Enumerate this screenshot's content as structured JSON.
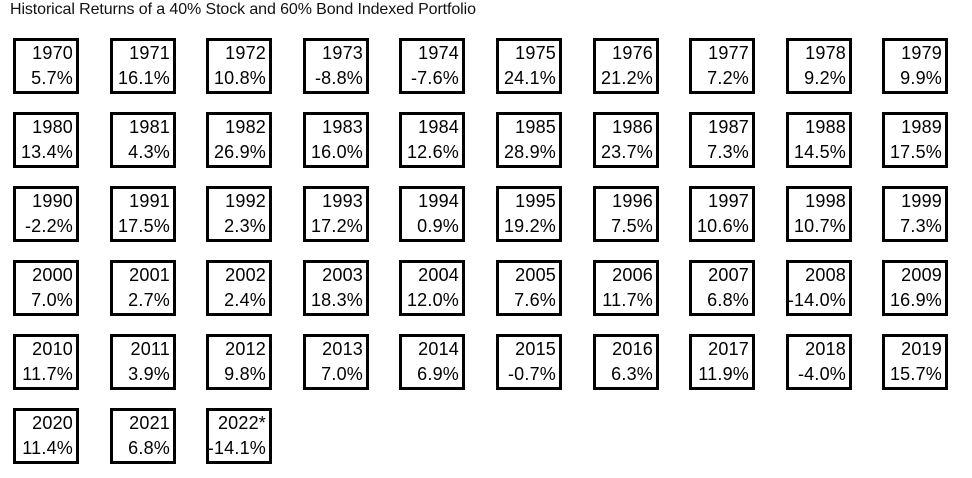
{
  "title": "Historical Returns of a 40% Stock and 60% Bond Indexed Portfolio",
  "chart_data": {
    "type": "table",
    "title": "Historical Returns of a 40% Stock and 60% Bond Indexed Portfolio",
    "columns_per_row": 10,
    "cells": [
      {
        "year": "1970",
        "return": "5.7%",
        "value": 5.7
      },
      {
        "year": "1971",
        "return": "16.1%",
        "value": 16.1
      },
      {
        "year": "1972",
        "return": "10.8%",
        "value": 10.8
      },
      {
        "year": "1973",
        "return": "-8.8%",
        "value": -8.8
      },
      {
        "year": "1974",
        "return": "-7.6%",
        "value": -7.6
      },
      {
        "year": "1975",
        "return": "24.1%",
        "value": 24.1
      },
      {
        "year": "1976",
        "return": "21.2%",
        "value": 21.2
      },
      {
        "year": "1977",
        "return": "7.2%",
        "value": 7.2
      },
      {
        "year": "1978",
        "return": "9.2%",
        "value": 9.2
      },
      {
        "year": "1979",
        "return": "9.9%",
        "value": 9.9
      },
      {
        "year": "1980",
        "return": "13.4%",
        "value": 13.4
      },
      {
        "year": "1981",
        "return": "4.3%",
        "value": 4.3
      },
      {
        "year": "1982",
        "return": "26.9%",
        "value": 26.9
      },
      {
        "year": "1983",
        "return": "16.0%",
        "value": 16.0
      },
      {
        "year": "1984",
        "return": "12.6%",
        "value": 12.6
      },
      {
        "year": "1985",
        "return": "28.9%",
        "value": 28.9
      },
      {
        "year": "1986",
        "return": "23.7%",
        "value": 23.7
      },
      {
        "year": "1987",
        "return": "7.3%",
        "value": 7.3
      },
      {
        "year": "1988",
        "return": "14.5%",
        "value": 14.5
      },
      {
        "year": "1989",
        "return": "17.5%",
        "value": 17.5
      },
      {
        "year": "1990",
        "return": "-2.2%",
        "value": -2.2
      },
      {
        "year": "1991",
        "return": "17.5%",
        "value": 17.5
      },
      {
        "year": "1992",
        "return": "2.3%",
        "value": 2.3
      },
      {
        "year": "1993",
        "return": "17.2%",
        "value": 17.2
      },
      {
        "year": "1994",
        "return": "0.9%",
        "value": 0.9
      },
      {
        "year": "1995",
        "return": "19.2%",
        "value": 19.2
      },
      {
        "year": "1996",
        "return": "7.5%",
        "value": 7.5
      },
      {
        "year": "1997",
        "return": "10.6%",
        "value": 10.6
      },
      {
        "year": "1998",
        "return": "10.7%",
        "value": 10.7
      },
      {
        "year": "1999",
        "return": "7.3%",
        "value": 7.3
      },
      {
        "year": "2000",
        "return": "7.0%",
        "value": 7.0
      },
      {
        "year": "2001",
        "return": "2.7%",
        "value": 2.7
      },
      {
        "year": "2002",
        "return": "2.4%",
        "value": 2.4
      },
      {
        "year": "2003",
        "return": "18.3%",
        "value": 18.3
      },
      {
        "year": "2004",
        "return": "12.0%",
        "value": 12.0
      },
      {
        "year": "2005",
        "return": "7.6%",
        "value": 7.6
      },
      {
        "year": "2006",
        "return": "11.7%",
        "value": 11.7
      },
      {
        "year": "2007",
        "return": "6.8%",
        "value": 6.8
      },
      {
        "year": "2008",
        "return": "-14.0%",
        "value": -14.0
      },
      {
        "year": "2009",
        "return": "16.9%",
        "value": 16.9
      },
      {
        "year": "2010",
        "return": "11.7%",
        "value": 11.7
      },
      {
        "year": "2011",
        "return": "3.9%",
        "value": 3.9
      },
      {
        "year": "2012",
        "return": "9.8%",
        "value": 9.8
      },
      {
        "year": "2013",
        "return": "7.0%",
        "value": 7.0
      },
      {
        "year": "2014",
        "return": "6.9%",
        "value": 6.9
      },
      {
        "year": "2015",
        "return": "-0.7%",
        "value": -0.7
      },
      {
        "year": "2016",
        "return": "6.3%",
        "value": 6.3
      },
      {
        "year": "2017",
        "return": "11.9%",
        "value": 11.9
      },
      {
        "year": "2018",
        "return": "-4.0%",
        "value": -4.0
      },
      {
        "year": "2019",
        "return": "15.7%",
        "value": 15.7
      },
      {
        "year": "2020",
        "return": "11.4%",
        "value": 11.4
      },
      {
        "year": "2021",
        "return": "6.8%",
        "value": 6.8
      },
      {
        "year": "2022*",
        "return": "-14.1%",
        "value": -14.1
      }
    ],
    "colors": {
      "border": "#000000",
      "background": "#ffffff",
      "text": "#000000"
    }
  }
}
